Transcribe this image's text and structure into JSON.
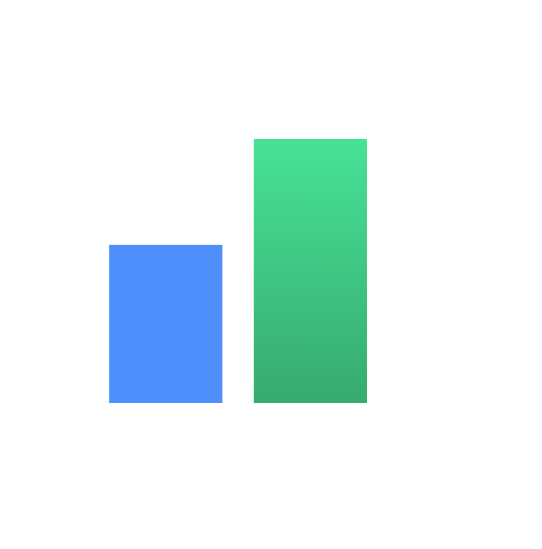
{
  "logo": {
    "icon": "bar-chart-icon",
    "bars": [
      {
        "name": "short-bar",
        "level": 0.6,
        "color_top": "#4f8ffb",
        "color_bottom": "#4f8ffb"
      },
      {
        "name": "tall-bar",
        "level": 1.0,
        "color_top": "#47e296",
        "color_bottom": "#37aa70"
      }
    ]
  }
}
